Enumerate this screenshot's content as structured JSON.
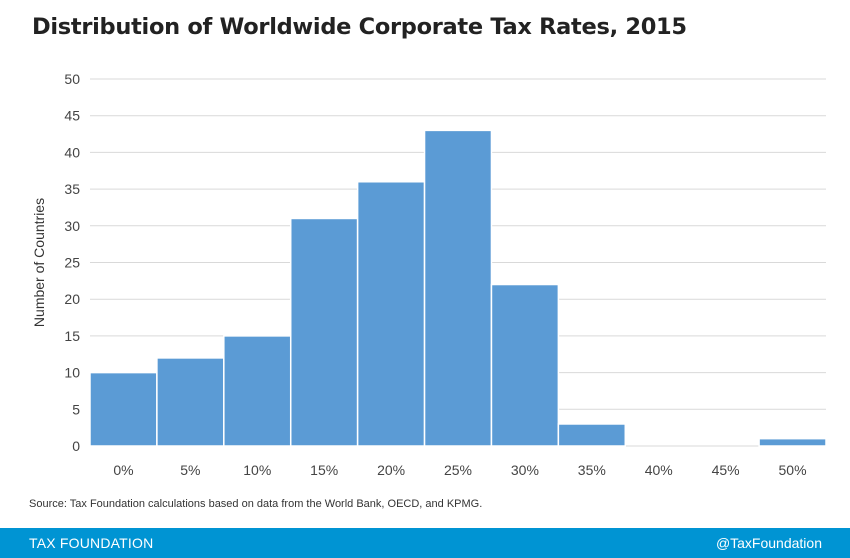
{
  "title": "Distribution of Worldwide Corporate Tax Rates, 2015",
  "source": "Source: Tax Foundation calculations based on data from the World Bank, OECD, and KPMG.",
  "footer": {
    "brand": "TAX FOUNDATION",
    "handle": "@TaxFoundation"
  },
  "colors": {
    "bar": "#5b9bd5",
    "grid": "#d9d9d9",
    "footer": "#0094d3"
  },
  "chart_data": {
    "type": "bar",
    "title": "Distribution of Worldwide Corporate Tax Rates, 2015",
    "xlabel": "",
    "ylabel": "Number of Countries",
    "categories": [
      "0%",
      "5%",
      "10%",
      "15%",
      "20%",
      "25%",
      "30%",
      "35%",
      "40%",
      "45%",
      "50%"
    ],
    "values": [
      10,
      12,
      15,
      31,
      36,
      43,
      22,
      3,
      0,
      0,
      1
    ],
    "ylim": [
      0,
      50
    ],
    "yticks": [
      0,
      5,
      10,
      15,
      20,
      25,
      30,
      35,
      40,
      45,
      50
    ],
    "grid": true,
    "legend": "none"
  }
}
